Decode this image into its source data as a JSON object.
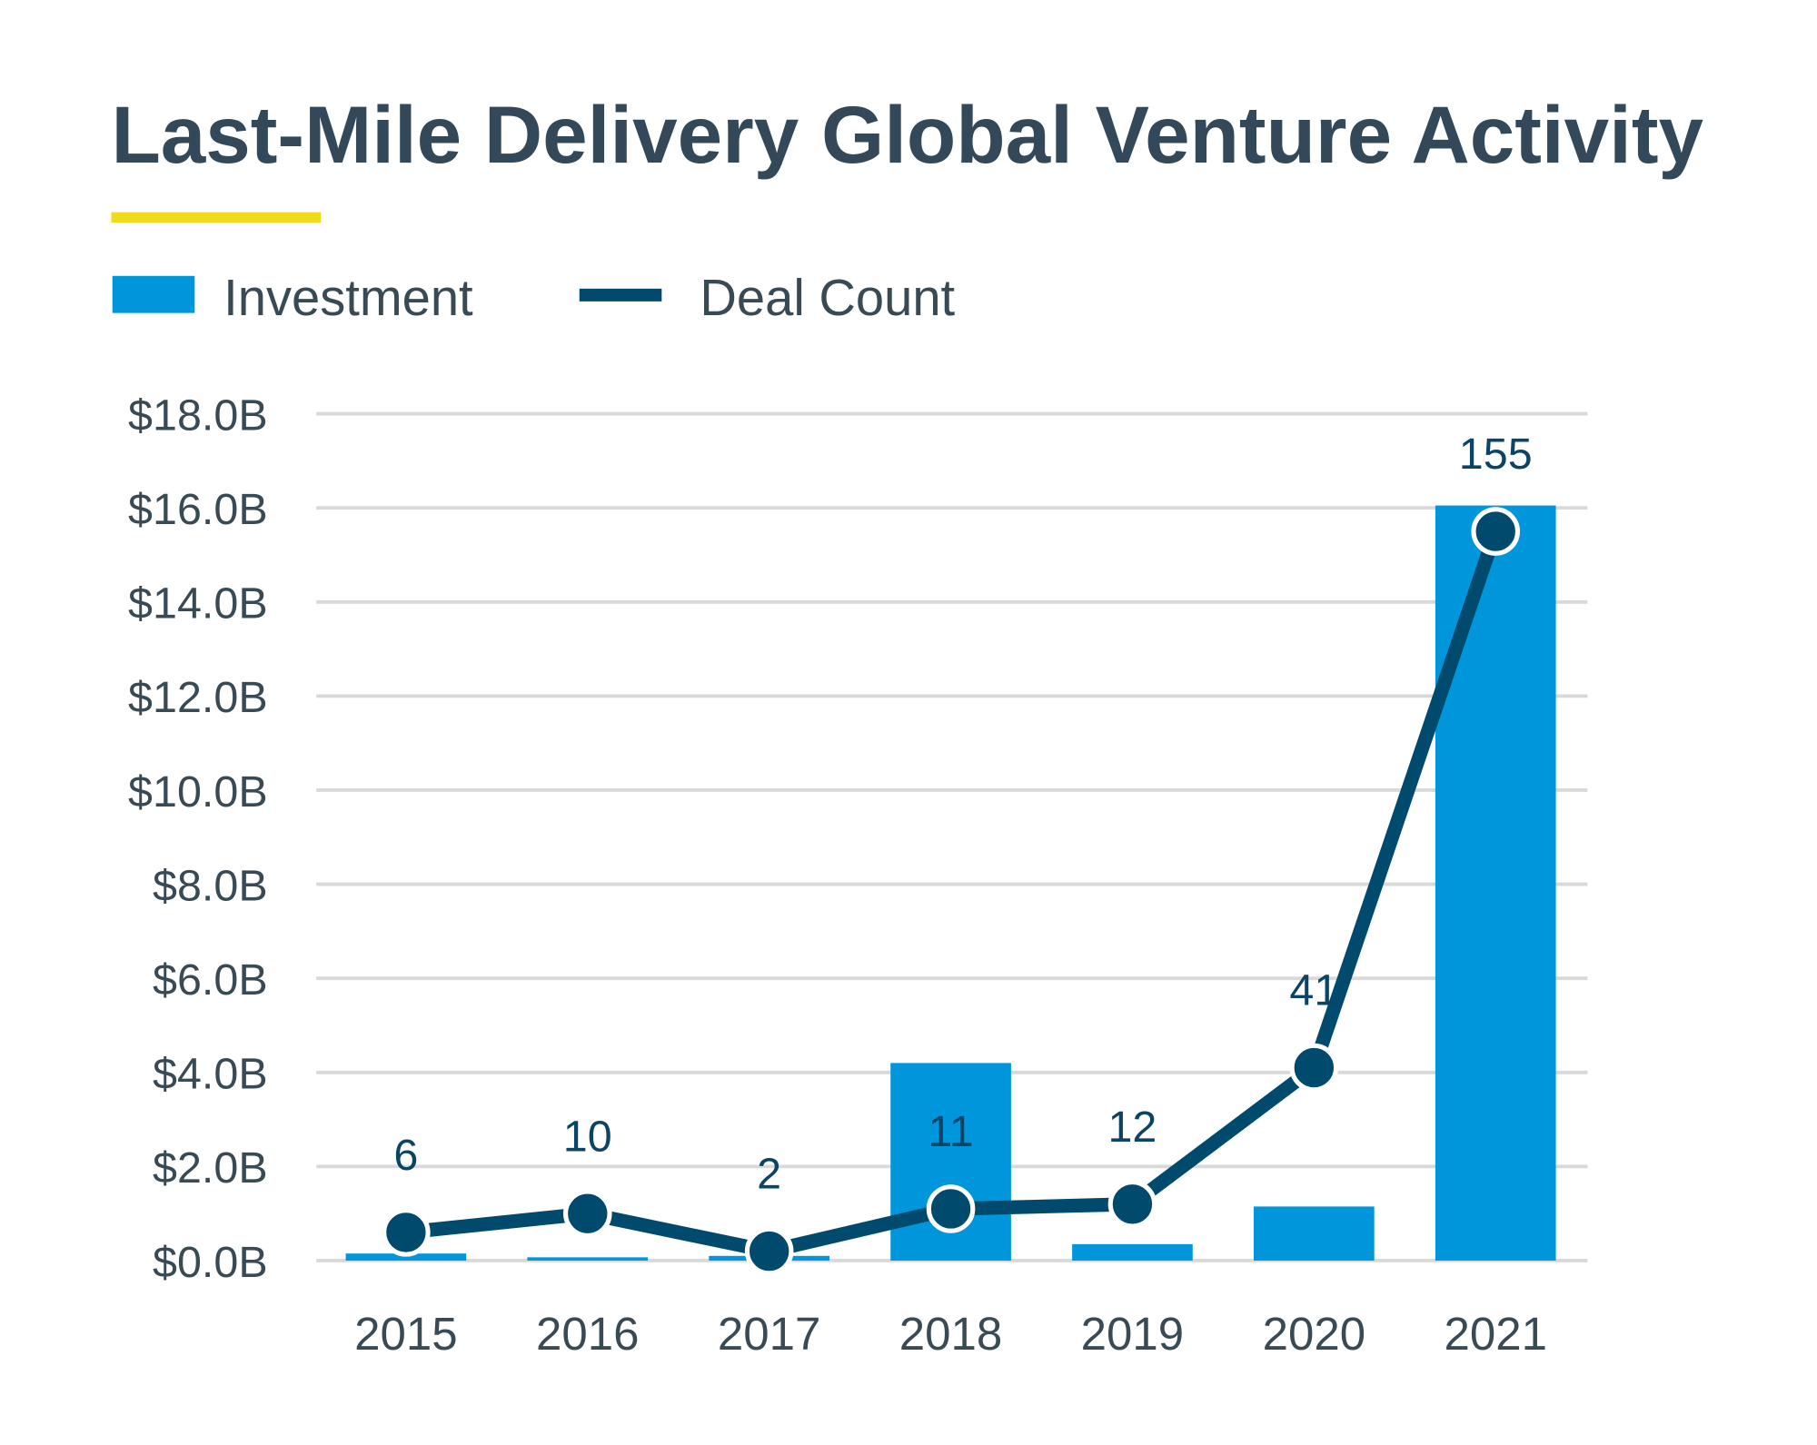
{
  "chart_data": {
    "type": "bar+line",
    "title": "Last-Mile Delivery Global Venture Activity",
    "categories": [
      "2015",
      "2016",
      "2017",
      "2018",
      "2019",
      "2020",
      "2021"
    ],
    "series": [
      {
        "name": "Investment",
        "type": "bar",
        "unit": "$B",
        "values": [
          0.15,
          0.07,
          0.1,
          4.2,
          0.35,
          1.15,
          16.05
        ],
        "color": "#0096db"
      },
      {
        "name": "Deal Count",
        "type": "line",
        "values": [
          6,
          10,
          2,
          11,
          12,
          41,
          155
        ],
        "data_labels": [
          "6",
          "10",
          "2",
          "11",
          "12",
          "41",
          "155"
        ],
        "color": "#004a6e"
      }
    ],
    "yaxis": {
      "ylim": [
        0,
        18
      ],
      "ticks": [
        0,
        2,
        4,
        6,
        8,
        10,
        12,
        14,
        16,
        18
      ],
      "tick_labels": [
        "$0.0B",
        "$2.0B",
        "$4.0B",
        "$6.0B",
        "$8.0B",
        "$10.0B",
        "$12.0B",
        "$14.0B",
        "$16.0B",
        "$18.0B"
      ]
    },
    "secondary_axis_hidden": true,
    "grid": true,
    "legend": "top-left",
    "accent_color": "#f0dc1a",
    "gridline_color": "#d9d9d9"
  }
}
